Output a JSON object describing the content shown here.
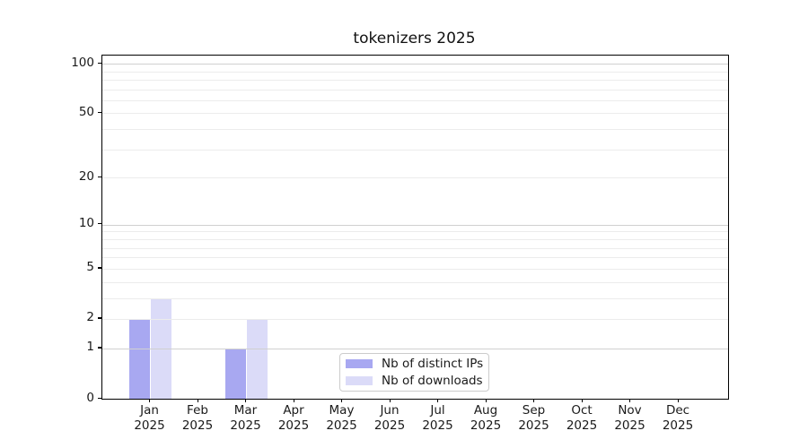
{
  "chart_data": {
    "type": "bar",
    "title": "tokenizers 2025",
    "categories": [
      "Jan",
      "Feb",
      "Mar",
      "Apr",
      "May",
      "Jun",
      "Jul",
      "Aug",
      "Sep",
      "Oct",
      "Nov",
      "Dec"
    ],
    "xtick_year": "2025",
    "series": [
      {
        "name": "Nb of distinct IPs",
        "color": "#a8a8f1",
        "values": [
          2,
          0,
          1,
          0,
          0,
          0,
          0,
          0,
          0,
          0,
          0,
          0
        ]
      },
      {
        "name": "Nb of downloads",
        "color": "#dbdbf8",
        "values": [
          3,
          0,
          2,
          0,
          0,
          0,
          0,
          0,
          0,
          0,
          0,
          0
        ]
      }
    ],
    "yscale": "log1p",
    "ylim": [
      0,
      112
    ],
    "ytick_labels": [
      "100",
      "50",
      "20",
      "10",
      "5",
      "2",
      "1",
      "0"
    ],
    "ytick_values": [
      100,
      50,
      20,
      10,
      5,
      2,
      1,
      0
    ],
    "grid_major_values": [
      1,
      10,
      100
    ],
    "grid_minor_values": [
      2,
      3,
      4,
      5,
      6,
      7,
      8,
      9,
      20,
      30,
      40,
      50,
      60,
      70,
      80,
      90
    ],
    "grid": "on",
    "legend_position": "lower center"
  }
}
